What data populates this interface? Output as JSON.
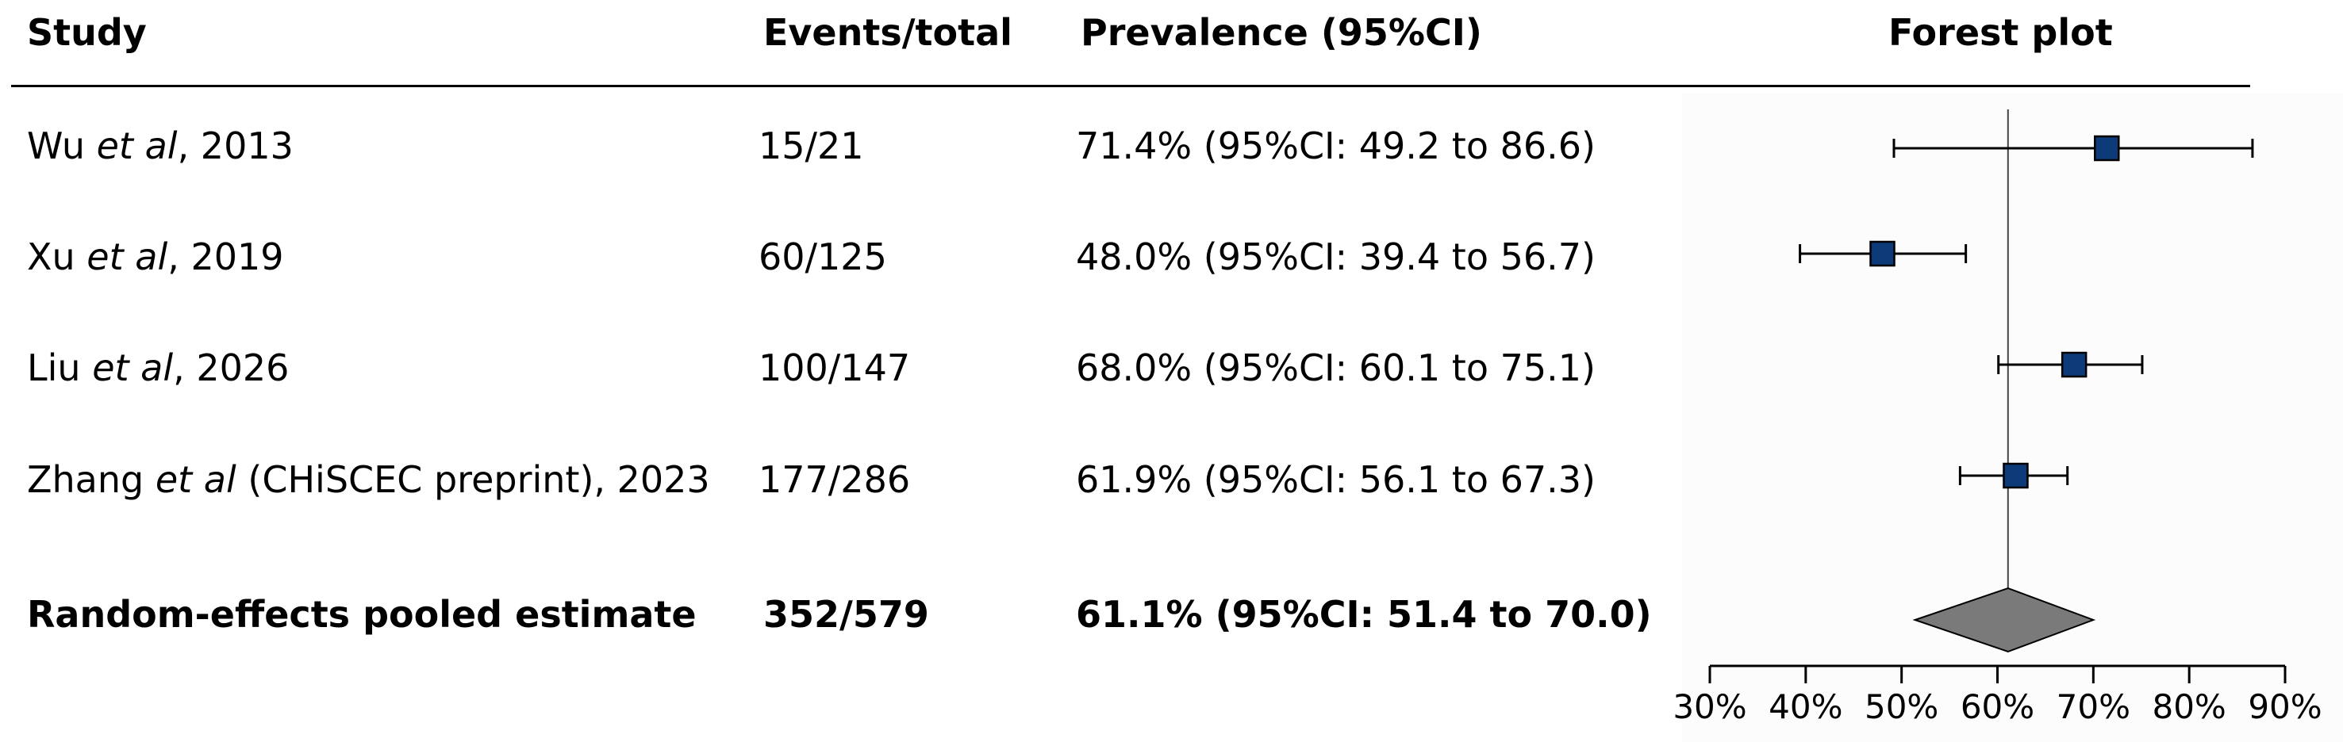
{
  "headers": {
    "study": "Study",
    "events": "Events/total",
    "prevalence": "Prevalence (95%CI)",
    "plot": "Forest plot"
  },
  "rows": [
    {
      "author": "Wu ",
      "etal": "et al",
      "rest": ", 2013",
      "events": "15/21",
      "prevalence": "71.4% (95%CI: 49.2 to 86.6)"
    },
    {
      "author": "Xu ",
      "etal": "et al",
      "rest": ", 2019",
      "events": "60/125",
      "prevalence": "48.0% (95%CI: 39.4 to 56.7)"
    },
    {
      "author": "Liu ",
      "etal": "et al",
      "rest": ", 2026",
      "events": "100/147",
      "prevalence": "68.0% (95%CI: 60.1 to 75.1)"
    },
    {
      "author": "Zhang ",
      "etal": "et al",
      "rest": " (CHiSCEC preprint), 2023",
      "events": "177/286",
      "prevalence": "61.9% (95%CI: 56.1 to 67.3)"
    }
  ],
  "pooled": {
    "label": "Random-effects pooled estimate",
    "events": "352/579",
    "prevalence": "61.1% (95%CI: 51.4 to 70.0)"
  },
  "chart_data": {
    "type": "forest",
    "title": "Forest plot",
    "studies": [
      {
        "estimate": 71.4,
        "ci": [
          49.2,
          86.6
        ]
      },
      {
        "estimate": 48.0,
        "ci": [
          39.4,
          56.7
        ]
      },
      {
        "estimate": 68.0,
        "ci": [
          60.1,
          75.1
        ]
      },
      {
        "estimate": 61.9,
        "ci": [
          56.1,
          67.3
        ]
      }
    ],
    "pooled": {
      "estimate": 61.1,
      "ci": [
        51.4,
        70.0
      ]
    },
    "xlim": [
      30,
      90
    ],
    "xticks": [
      30,
      40,
      50,
      60,
      70,
      80,
      90
    ],
    "xtick_labels": [
      "30%",
      "40%",
      "50%",
      "60%",
      "70%",
      "80%",
      "90%"
    ],
    "reference_line": 61.1,
    "colors": {
      "marker": "#0d3a78",
      "diamond": "#7a7a7a"
    }
  }
}
